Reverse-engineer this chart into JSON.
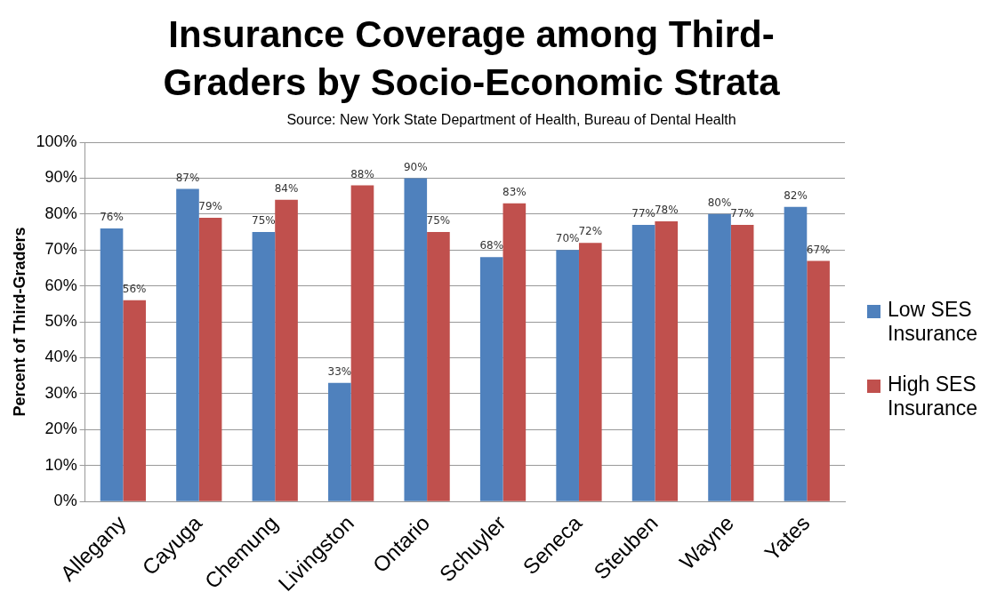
{
  "chart_data": {
    "type": "bar",
    "title": "Insurance Coverage among Third-Graders by Socio-Economic Strata",
    "subtitle": "Source: New York State Department of Health, Bureau of Dental Health",
    "ylabel": "Percent of Third-Graders",
    "categories": [
      "Allegany",
      "Cayuga",
      "Chemung",
      "Livingston",
      "Ontario",
      "Schuyler",
      "Seneca",
      "Steuben",
      "Wayne",
      "Yates"
    ],
    "series": [
      {
        "name": "Low SES Insurance",
        "color": "#4f81bd",
        "values": [
          76,
          87,
          75,
          33,
          90,
          68,
          70,
          77,
          80,
          82
        ],
        "value_labels": [
          "76%",
          "87%",
          "75%",
          "33%",
          "90%",
          "68%",
          "70%",
          "77%",
          "80%",
          "82%"
        ]
      },
      {
        "name": "High SES Insurance",
        "color": "#c0504d",
        "values": [
          56,
          79,
          84,
          88,
          75,
          83,
          72,
          78,
          77,
          67
        ],
        "value_labels": [
          "56%",
          "79%",
          "84%",
          "88%",
          "75%",
          "83%",
          "72%",
          "78%",
          "77%",
          "67%"
        ]
      }
    ],
    "ylim": [
      0,
      100
    ],
    "yticks": [
      {
        "value": 0,
        "label": "0%"
      },
      {
        "value": 10,
        "label": "10%"
      },
      {
        "value": 20,
        "label": "20%"
      },
      {
        "value": 30,
        "label": "30%"
      },
      {
        "value": 40,
        "label": "40%"
      },
      {
        "value": 50,
        "label": "50%"
      },
      {
        "value": 60,
        "label": "60%"
      },
      {
        "value": 70,
        "label": "70%"
      },
      {
        "value": 80,
        "label": "80%"
      },
      {
        "value": 90,
        "label": "90%"
      },
      {
        "value": 100,
        "label": "100%"
      }
    ],
    "grid": "y",
    "legend": "right"
  }
}
